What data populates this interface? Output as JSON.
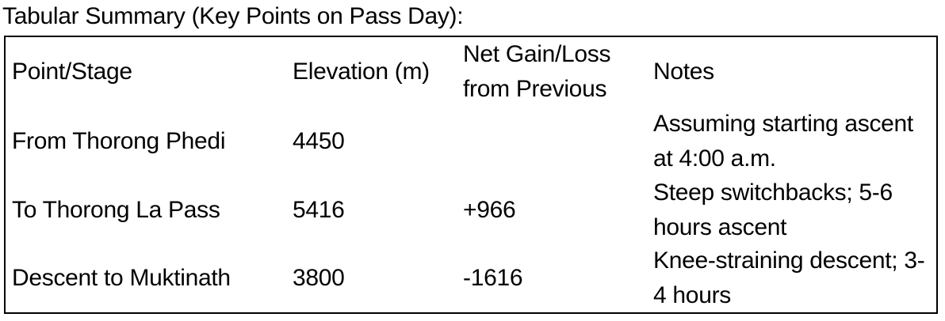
{
  "page": {
    "title": "Tabular Summary (Key Points on Pass Day):"
  },
  "table": {
    "headers": {
      "stage": "Point/Stage",
      "elevation": "Elevation (m)",
      "net_gain": "Net Gain/Loss from Previous",
      "notes": "Notes"
    },
    "rows": [
      {
        "stage": "From Thorong Phedi",
        "elevation": "4450",
        "net_gain": "",
        "notes": "Assuming starting ascent at 4:00 a.m."
      },
      {
        "stage": "To Thorong La Pass",
        "elevation": "5416",
        "net_gain": "+966",
        "notes": "Steep switchbacks; 5-6 hours ascent"
      },
      {
        "stage": "Descent to Muktinath",
        "elevation": "3800",
        "net_gain": "-1616",
        "notes": "Knee-straining descent; 3-4 hours"
      }
    ],
    "colors": {
      "text": "#000000",
      "border": "#000000",
      "background": "#ffffff"
    }
  }
}
